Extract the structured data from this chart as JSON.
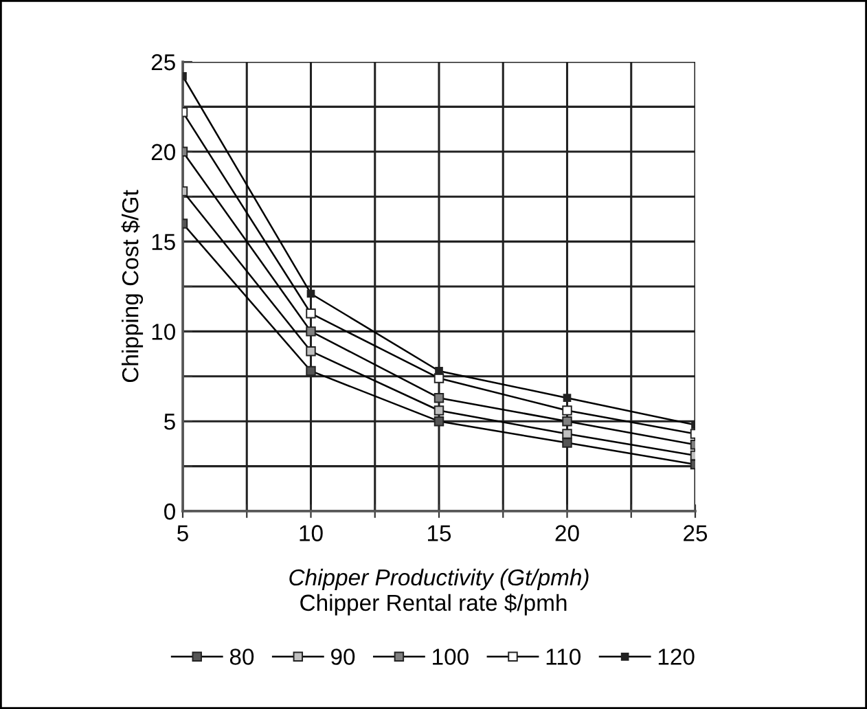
{
  "chart_data": {
    "type": "line",
    "xlabel": "Chipper Productivity (Gt/pmh)",
    "ylabel": "Chipping Cost $/Gt",
    "legend_title": "Chipper Rental rate $/pmh",
    "x": [
      5,
      10,
      15,
      20,
      25
    ],
    "series": [
      {
        "name": "80",
        "color": "#555555",
        "values": [
          16.0,
          7.8,
          5.0,
          3.8,
          2.6
        ]
      },
      {
        "name": "90",
        "color": "#c0c0c0",
        "values": [
          17.8,
          8.9,
          5.6,
          4.3,
          3.1
        ]
      },
      {
        "name": "100",
        "color": "#808080",
        "values": [
          20.0,
          10.0,
          6.3,
          5.0,
          3.7
        ]
      },
      {
        "name": "110",
        "color": "#ffffff",
        "values": [
          22.2,
          11.0,
          7.4,
          5.6,
          4.3
        ]
      },
      {
        "name": "120",
        "color": "#222222",
        "values": [
          24.2,
          12.1,
          7.8,
          6.3,
          4.8
        ]
      }
    ],
    "xlim": [
      5,
      25
    ],
    "ylim": [
      0,
      25
    ],
    "xticks": [
      5,
      {
        "value": 7.5,
        "label": null
      },
      10,
      {
        "value": 12.5,
        "label": null
      },
      15,
      {
        "value": 17.5,
        "label": null
      },
      20,
      {
        "value": 22.5,
        "label": null
      },
      25
    ],
    "yticks": [
      0,
      {
        "value": 2.5,
        "label": null
      },
      5,
      {
        "value": 7.5,
        "label": null
      },
      10,
      {
        "value": 12.5,
        "label": null
      },
      15,
      {
        "value": 17.5,
        "label": null
      },
      20,
      {
        "value": 22.5,
        "label": null
      },
      25
    ],
    "grid": true,
    "legend": "bottom",
    "marker": "square",
    "line_style": "solid"
  }
}
